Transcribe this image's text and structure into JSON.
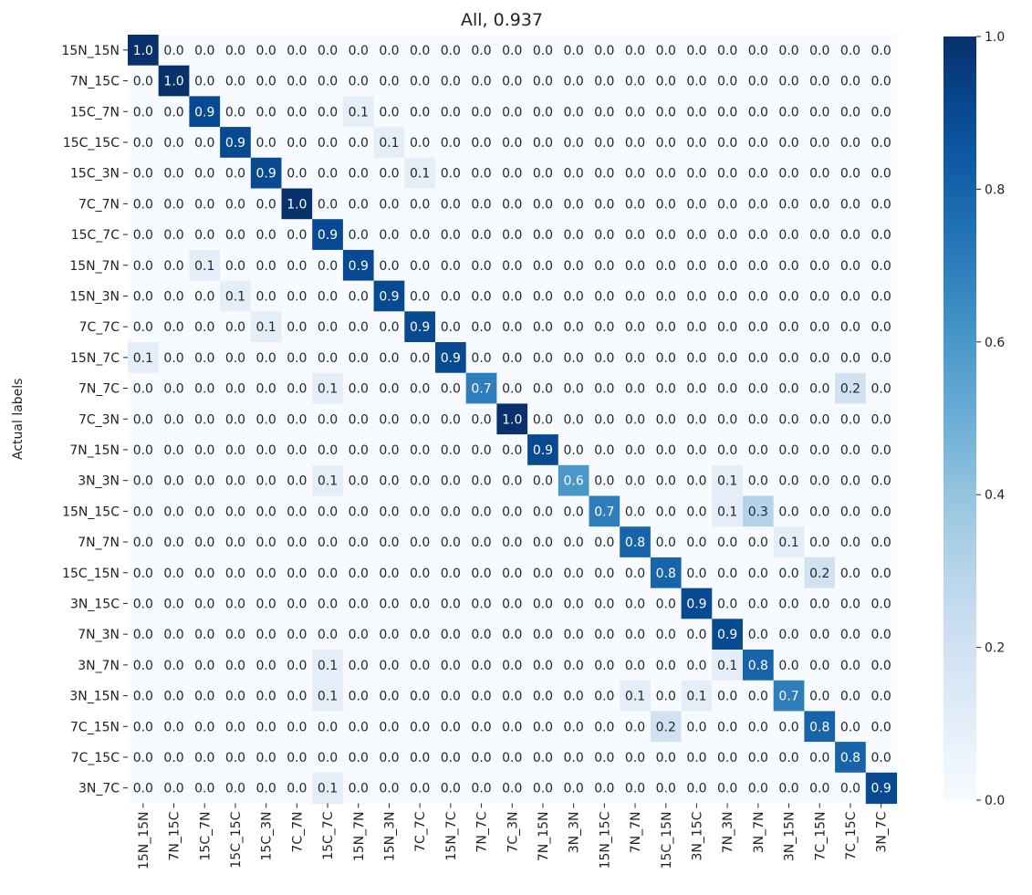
{
  "chart_data": {
    "type": "heatmap",
    "title": "All, 0.937",
    "ylabel": "Actual labels",
    "xlabel": "",
    "y_labels": [
      "15N_15N",
      "7N_15C",
      "15C_7N",
      "15C_15C",
      "15C_3N",
      "7C_7N",
      "15C_7C",
      "15N_7N",
      "15N_3N",
      "7C_7C",
      "15N_7C",
      "7N_7C",
      "7C_3N",
      "7N_15N",
      "3N_3N",
      "15N_15C",
      "7N_7N",
      "15C_15N",
      "3N_15C",
      "7N_3N",
      "3N_7N",
      "3N_15N",
      "7C_15N",
      "7C_15C",
      "3N_7C"
    ],
    "x_labels": [
      "15N_15N",
      "7N_15C",
      "15C_7N",
      "15C_15C",
      "15C_3N",
      "7C_7N",
      "15C_7C",
      "15N_7N",
      "15N_3N",
      "7C_7C",
      "15N_7C",
      "7N_7C",
      "7C_3N",
      "7N_15N",
      "3N_3N",
      "15N_15C",
      "7N_7N",
      "15C_15N",
      "3N_15C",
      "7N_3N",
      "3N_7N",
      "3N_15N",
      "7C_15N",
      "7C_15C",
      "3N_7C"
    ],
    "values": [
      [
        1.0,
        0,
        0,
        0,
        0,
        0,
        0,
        0,
        0,
        0,
        0,
        0,
        0,
        0,
        0,
        0,
        0,
        0,
        0,
        0,
        0,
        0,
        0,
        0,
        0
      ],
      [
        0,
        1.0,
        0,
        0,
        0,
        0,
        0,
        0,
        0,
        0,
        0,
        0,
        0,
        0,
        0,
        0,
        0,
        0,
        0,
        0,
        0,
        0,
        0,
        0,
        0
      ],
      [
        0,
        0,
        0.9,
        0,
        0,
        0,
        0,
        0.1,
        0,
        0,
        0,
        0,
        0,
        0,
        0,
        0,
        0,
        0,
        0,
        0,
        0,
        0,
        0,
        0,
        0
      ],
      [
        0,
        0,
        0,
        0.9,
        0,
        0,
        0,
        0,
        0.1,
        0,
        0,
        0,
        0,
        0,
        0,
        0,
        0,
        0,
        0,
        0,
        0,
        0,
        0,
        0,
        0
      ],
      [
        0,
        0,
        0,
        0,
        0.9,
        0,
        0,
        0,
        0,
        0.1,
        0,
        0,
        0,
        0,
        0,
        0,
        0,
        0,
        0,
        0,
        0,
        0,
        0,
        0,
        0
      ],
      [
        0,
        0,
        0,
        0,
        0,
        1.0,
        0,
        0,
        0,
        0,
        0,
        0,
        0,
        0,
        0,
        0,
        0,
        0,
        0,
        0,
        0,
        0,
        0,
        0,
        0
      ],
      [
        0,
        0,
        0,
        0,
        0,
        0,
        0.9,
        0,
        0,
        0,
        0,
        0,
        0,
        0,
        0,
        0,
        0,
        0,
        0,
        0,
        0,
        0,
        0,
        0,
        0
      ],
      [
        0,
        0,
        0.1,
        0,
        0,
        0,
        0,
        0.9,
        0,
        0,
        0,
        0,
        0,
        0,
        0,
        0,
        0,
        0,
        0,
        0,
        0,
        0,
        0,
        0,
        0
      ],
      [
        0,
        0,
        0,
        0.1,
        0,
        0,
        0,
        0,
        0.9,
        0,
        0,
        0,
        0,
        0,
        0,
        0,
        0,
        0,
        0,
        0,
        0,
        0,
        0,
        0,
        0
      ],
      [
        0,
        0,
        0,
        0,
        0.1,
        0,
        0,
        0,
        0,
        0.9,
        0,
        0,
        0,
        0,
        0,
        0,
        0,
        0,
        0,
        0,
        0,
        0,
        0,
        0,
        0
      ],
      [
        0.1,
        0,
        0,
        0,
        0,
        0,
        0,
        0,
        0,
        0,
        0.9,
        0,
        0,
        0,
        0,
        0,
        0,
        0,
        0,
        0,
        0,
        0,
        0,
        0,
        0
      ],
      [
        0,
        0,
        0,
        0,
        0,
        0,
        0.1,
        0,
        0,
        0,
        0,
        0.7,
        0,
        0,
        0,
        0,
        0,
        0,
        0,
        0,
        0,
        0,
        0,
        0.2,
        0
      ],
      [
        0,
        0,
        0,
        0,
        0,
        0,
        0,
        0,
        0,
        0,
        0,
        0,
        1.0,
        0,
        0,
        0,
        0,
        0,
        0,
        0,
        0,
        0,
        0,
        0,
        0
      ],
      [
        0,
        0,
        0,
        0,
        0,
        0,
        0,
        0,
        0,
        0,
        0,
        0,
        0,
        0.9,
        0,
        0,
        0,
        0,
        0,
        0,
        0,
        0,
        0,
        0,
        0
      ],
      [
        0,
        0,
        0,
        0,
        0,
        0,
        0.1,
        0,
        0,
        0,
        0,
        0,
        0,
        0,
        0.6,
        0,
        0,
        0,
        0,
        0.1,
        0,
        0,
        0,
        0,
        0
      ],
      [
        0,
        0,
        0,
        0,
        0,
        0,
        0,
        0,
        0,
        0,
        0,
        0,
        0,
        0,
        0,
        0.7,
        0,
        0,
        0,
        0.1,
        0.3,
        0,
        0,
        0,
        0
      ],
      [
        0,
        0,
        0,
        0,
        0,
        0,
        0,
        0,
        0,
        0,
        0,
        0,
        0,
        0,
        0,
        0,
        0.8,
        0,
        0,
        0,
        0,
        0.1,
        0,
        0,
        0
      ],
      [
        0,
        0,
        0,
        0,
        0,
        0,
        0,
        0,
        0,
        0,
        0,
        0,
        0,
        0,
        0,
        0,
        0,
        0.8,
        0,
        0,
        0,
        0,
        0.2,
        0,
        0
      ],
      [
        0,
        0,
        0,
        0,
        0,
        0,
        0,
        0,
        0,
        0,
        0,
        0,
        0,
        0,
        0,
        0,
        0,
        0,
        0.9,
        0,
        0,
        0,
        0,
        0,
        0
      ],
      [
        0,
        0,
        0,
        0,
        0,
        0,
        0,
        0,
        0,
        0,
        0,
        0,
        0,
        0,
        0,
        0,
        0,
        0,
        0,
        0.9,
        0,
        0,
        0,
        0,
        0
      ],
      [
        0,
        0,
        0,
        0,
        0,
        0,
        0.1,
        0,
        0,
        0,
        0,
        0,
        0,
        0,
        0,
        0,
        0,
        0,
        0,
        0.1,
        0.8,
        0,
        0,
        0,
        0
      ],
      [
        0,
        0,
        0,
        0,
        0,
        0,
        0.1,
        0,
        0,
        0,
        0,
        0,
        0,
        0,
        0,
        0,
        0.1,
        0,
        0.1,
        0,
        0,
        0.7,
        0,
        0,
        0
      ],
      [
        0,
        0,
        0,
        0,
        0,
        0,
        0,
        0,
        0,
        0,
        0,
        0,
        0,
        0,
        0,
        0,
        0,
        0.2,
        0,
        0,
        0,
        0,
        0.8,
        0,
        0
      ],
      [
        0,
        0,
        0,
        0,
        0,
        0,
        0,
        0,
        0,
        0,
        0,
        0,
        0,
        0,
        0,
        0,
        0,
        0,
        0,
        0,
        0,
        0,
        0,
        0.8,
        0
      ],
      [
        0,
        0,
        0,
        0,
        0,
        0,
        0.1,
        0,
        0,
        0,
        0,
        0,
        0,
        0,
        0,
        0,
        0,
        0,
        0,
        0,
        0,
        0,
        0,
        0,
        0.9
      ]
    ],
    "colorbar": {
      "range": [
        0.0,
        1.0
      ],
      "ticks": [
        "0.0",
        "0.2",
        "0.4",
        "0.6",
        "0.8",
        "1.0"
      ],
      "colormap": "Blues",
      "low_color": "#f7fbff",
      "high_color": "#08306b"
    },
    "grid": false,
    "legend": "none"
  }
}
